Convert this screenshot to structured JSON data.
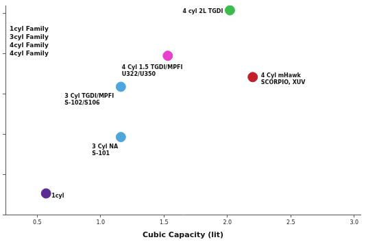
{
  "chart_data": {
    "type": "scatter",
    "x_label": "Cubic Capacity (lit)",
    "legend": "upper left",
    "grid": false,
    "tick_labels": "x",
    "marker": "circle",
    "xlim": [
      0.25,
      3.05
    ],
    "xticks": [
      0.5,
      {
        "value": 1,
        "label": "1.0"
      },
      1.5,
      {
        "value": 2,
        "label": "2.0"
      },
      2.5,
      {
        "value": 3,
        "label": "3.0"
      }
    ],
    "ylim": [
      0,
      5.2
    ],
    "yticks": [
      0,
      1,
      2,
      3,
      4,
      5
    ],
    "series": [
      {
        "name": "1cyl Family",
        "colors": [
          "#5b2d90"
        ],
        "x": [
          0.57
        ],
        "values": [
          0.53
        ],
        "point_labels": [
          [
            "1cyl"
          ]
        ]
      },
      {
        "name": "3cyl Family",
        "colors": [
          "#4ea6dc",
          "#4ea6dc"
        ],
        "x": [
          1.16,
          1.16
        ],
        "values": [
          1.93,
          3.18
        ],
        "point_labels": [
          [
            "3 Cyl NA",
            "S-101"
          ],
          [
            "3 Cyl TGDI/MPFI",
            "S-102/S106"
          ]
        ]
      },
      {
        "name": "4cyl Family",
        "colors": [
          "#e83fcf"
        ],
        "x": [
          1.53
        ],
        "values": [
          3.95
        ],
        "point_labels": [
          [
            "4 Cyl 1.5 TGDI/MPFI",
            "U322/U350"
          ]
        ]
      },
      {
        "name": "4cyl Family",
        "colors": [
          "#3dbb4f",
          "#c0202a"
        ],
        "x": [
          2.02,
          2.2
        ],
        "values": [
          5.08,
          3.42
        ],
        "point_labels": [
          [
            "4 cyl 2L TGDI"
          ],
          [
            "4 Cyl mHawk",
            "SCORPIO, XUV"
          ]
        ]
      }
    ]
  }
}
